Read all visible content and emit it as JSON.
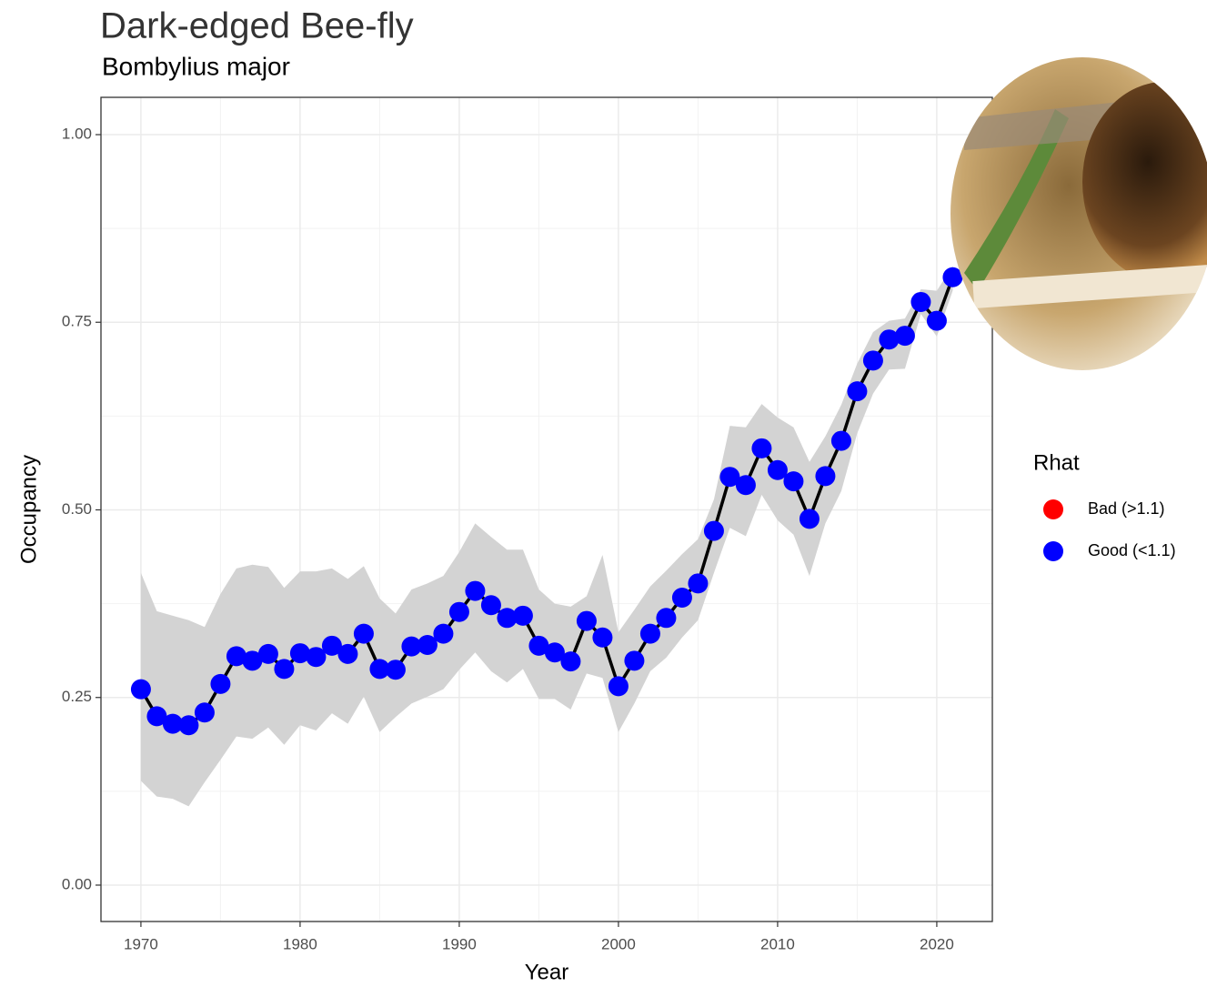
{
  "chart_data": {
    "type": "line",
    "title": "Dark-edged Bee-fly",
    "subtitle": "Bombylius major",
    "x_label": "Year",
    "y_label": "Occupancy",
    "x": [
      1970,
      1971,
      1972,
      1973,
      1974,
      1975,
      1976,
      1977,
      1978,
      1979,
      1980,
      1981,
      1982,
      1983,
      1984,
      1985,
      1986,
      1987,
      1988,
      1989,
      1990,
      1991,
      1992,
      1993,
      1994,
      1995,
      1996,
      1997,
      1998,
      1999,
      2000,
      2001,
      2002,
      2003,
      2004,
      2005,
      2006,
      2007,
      2008,
      2009,
      2010,
      2011,
      2012,
      2013,
      2014,
      2015,
      2016,
      2017,
      2018,
      2019,
      2020,
      2021
    ],
    "series": [
      {
        "color": "#0000ff",
        "line_color": "#000000",
        "values": [
          0.261,
          0.225,
          0.215,
          0.213,
          0.23,
          0.268,
          0.305,
          0.299,
          0.308,
          0.288,
          0.309,
          0.304,
          0.319,
          0.308,
          0.335,
          0.288,
          0.287,
          0.318,
          0.32,
          0.335,
          0.364,
          0.392,
          0.373,
          0.356,
          0.359,
          0.319,
          0.31,
          0.298,
          0.352,
          0.33,
          0.265,
          0.299,
          0.335,
          0.356,
          0.383,
          0.402,
          0.472,
          0.544,
          0.533,
          0.582,
          0.553,
          0.538,
          0.488,
          0.545,
          0.592,
          0.658,
          0.699,
          0.727,
          0.732,
          0.777,
          0.752,
          0.81
        ]
      }
    ],
    "ribbon": {
      "color": "#d3d3d3",
      "upper": [
        0.416,
        0.365,
        0.359,
        0.353,
        0.344,
        0.388,
        0.422,
        0.427,
        0.424,
        0.396,
        0.418,
        0.418,
        0.422,
        0.408,
        0.425,
        0.382,
        0.362,
        0.394,
        0.402,
        0.412,
        0.444,
        0.482,
        0.464,
        0.447,
        0.447,
        0.394,
        0.375,
        0.371,
        0.385,
        0.44,
        0.337,
        0.367,
        0.398,
        0.419,
        0.441,
        0.461,
        0.514,
        0.612,
        0.61,
        0.641,
        0.623,
        0.61,
        0.564,
        0.598,
        0.64,
        0.695,
        0.737,
        0.752,
        0.755,
        0.794,
        0.792,
        0.825
      ],
      "lower": [
        0.139,
        0.118,
        0.115,
        0.105,
        0.137,
        0.167,
        0.198,
        0.195,
        0.21,
        0.187,
        0.213,
        0.206,
        0.229,
        0.215,
        0.251,
        0.204,
        0.224,
        0.242,
        0.251,
        0.261,
        0.287,
        0.31,
        0.285,
        0.27,
        0.288,
        0.248,
        0.248,
        0.234,
        0.282,
        0.276,
        0.204,
        0.242,
        0.285,
        0.303,
        0.33,
        0.353,
        0.416,
        0.476,
        0.465,
        0.52,
        0.486,
        0.467,
        0.412,
        0.482,
        0.525,
        0.602,
        0.655,
        0.687,
        0.688,
        0.761,
        0.731,
        0.792
      ]
    },
    "xlim": [
      1967.49,
      2023.49
    ],
    "ylim": [
      -0.0485,
      1.0497
    ],
    "xticks": [
      1970,
      1980,
      1990,
      2000,
      2010,
      2020
    ],
    "yticks": [
      {
        "value": 0,
        "label": "0.00"
      },
      {
        "value": 0.25,
        "label": "0.25"
      },
      {
        "value": 0.5,
        "label": "0.50"
      },
      {
        "value": 0.75,
        "label": "0.75"
      },
      {
        "value": 1,
        "label": "1.00"
      }
    ],
    "minor_xticks": [
      1975,
      1985,
      1995,
      2005,
      2015
    ],
    "minor_yticks": [
      0.125,
      0.375,
      0.625,
      0.875
    ],
    "grid": true,
    "legend": {
      "title": "Rhat",
      "position": "right",
      "entries": [
        {
          "name": "Bad (>1.1)",
          "color": "#ff0000"
        },
        {
          "name": "Good (<1.1)",
          "color": "#0000ff"
        }
      ]
    }
  }
}
